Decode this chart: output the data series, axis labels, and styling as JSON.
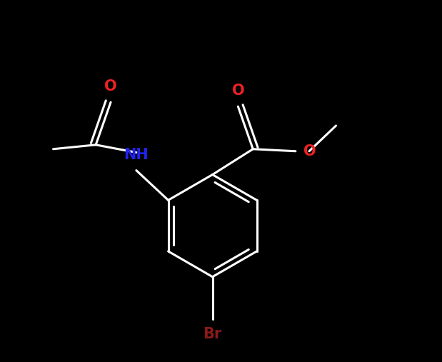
{
  "bg_color": "#000000",
  "bond_color": "#ffffff",
  "bond_width": 2.2,
  "label_NH": {
    "text": "NH",
    "color": "#2222ee",
    "fontsize": 15,
    "fontweight": "bold"
  },
  "label_O_amide": {
    "text": "O",
    "color": "#ee2222",
    "fontsize": 15,
    "fontweight": "bold"
  },
  "label_O_ester1": {
    "text": "O",
    "color": "#ee2222",
    "fontsize": 15,
    "fontweight": "bold"
  },
  "label_O_ester2": {
    "text": "O",
    "color": "#ee2222",
    "fontsize": 15,
    "fontweight": "bold"
  },
  "label_Br": {
    "text": "Br",
    "color": "#8b1a1a",
    "fontsize": 15,
    "fontweight": "bold"
  },
  "figsize": [
    6.19,
    5.07
  ],
  "dpi": 100,
  "xlim": [
    -4.0,
    5.0
  ],
  "ylim": [
    -4.0,
    4.5
  ]
}
